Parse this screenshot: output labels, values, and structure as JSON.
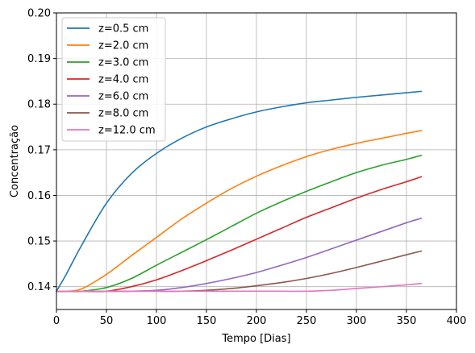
{
  "chart_data": {
    "type": "line",
    "title": "",
    "xlabel": "Tempo [Dias]",
    "ylabel": "Concentração",
    "xlim": [
      0,
      400
    ],
    "ylim": [
      0.135,
      0.2
    ],
    "xticks": [
      0,
      50,
      100,
      150,
      200,
      250,
      300,
      350,
      400
    ],
    "yticks": [
      0.14,
      0.15,
      0.16,
      0.17,
      0.18,
      0.19,
      0.2
    ],
    "xtick_labels": [
      "0",
      "50",
      "100",
      "150",
      "200",
      "250",
      "300",
      "350",
      "400"
    ],
    "ytick_labels": [
      "0.14",
      "0.15",
      "0.16",
      "0.17",
      "0.18",
      "0.19",
      "0.20"
    ],
    "grid": true,
    "legend_position": "top-left",
    "x": [
      0,
      10,
      25,
      50,
      75,
      100,
      125,
      150,
      175,
      200,
      225,
      250,
      275,
      300,
      325,
      350,
      365
    ],
    "series": [
      {
        "name": "z=0.5 cm",
        "color": "#1f77b4",
        "values": [
          0.139,
          0.1428,
          0.149,
          0.1583,
          0.1648,
          0.1692,
          0.1725,
          0.175,
          0.1768,
          0.1783,
          0.1794,
          0.1803,
          0.1809,
          0.1815,
          0.182,
          0.1825,
          0.1828
        ]
      },
      {
        "name": "z=2.0 cm",
        "color": "#ff7f0e",
        "values": [
          0.139,
          0.139,
          0.1395,
          0.1427,
          0.1468,
          0.1508,
          0.1548,
          0.1583,
          0.1615,
          0.1642,
          0.1665,
          0.1685,
          0.1701,
          0.1714,
          0.1725,
          0.1736,
          0.1742
        ]
      },
      {
        "name": "z=3.0 cm",
        "color": "#2ca02c",
        "values": [
          0.139,
          0.139,
          0.139,
          0.1398,
          0.1418,
          0.1447,
          0.1475,
          0.1503,
          0.1532,
          0.1561,
          0.1586,
          0.1609,
          0.163,
          0.165,
          0.1666,
          0.1679,
          0.1688
        ]
      },
      {
        "name": "z=4.0 cm",
        "color": "#d62728",
        "values": [
          0.139,
          0.139,
          0.139,
          0.139,
          0.14,
          0.1415,
          0.1435,
          0.1457,
          0.148,
          0.1504,
          0.1528,
          0.1552,
          0.1573,
          0.1594,
          0.1613,
          0.163,
          0.1641
        ]
      },
      {
        "name": "z=6.0 cm",
        "color": "#9467bd",
        "values": [
          0.139,
          0.139,
          0.139,
          0.139,
          0.139,
          0.1392,
          0.1398,
          0.1407,
          0.1418,
          0.1431,
          0.1447,
          0.1464,
          0.1483,
          0.1502,
          0.1521,
          0.154,
          0.155
        ]
      },
      {
        "name": "z=8.0 cm",
        "color": "#8c564b",
        "values": [
          0.139,
          0.139,
          0.139,
          0.139,
          0.139,
          0.139,
          0.139,
          0.1392,
          0.1396,
          0.1402,
          0.1409,
          0.1418,
          0.1429,
          0.1442,
          0.1456,
          0.147,
          0.1478
        ]
      },
      {
        "name": "z=12.0 cm",
        "color": "#e377c2",
        "values": [
          0.139,
          0.139,
          0.139,
          0.139,
          0.139,
          0.139,
          0.139,
          0.139,
          0.139,
          0.139,
          0.139,
          0.139,
          0.1392,
          0.1396,
          0.14,
          0.1404,
          0.1407
        ]
      }
    ]
  }
}
